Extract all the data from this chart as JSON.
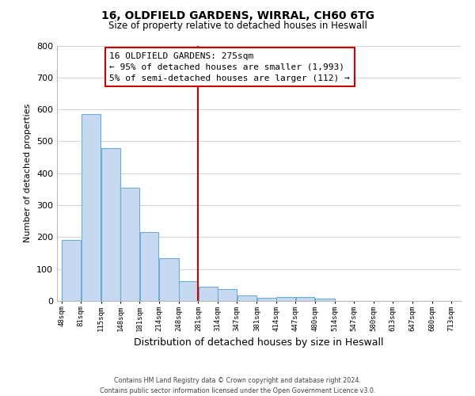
{
  "title": "16, OLDFIELD GARDENS, WIRRAL, CH60 6TG",
  "subtitle": "Size of property relative to detached houses in Heswall",
  "xlabel": "Distribution of detached houses by size in Heswall",
  "ylabel": "Number of detached properties",
  "bar_left_edges": [
    48,
    81,
    115,
    148,
    181,
    214,
    248,
    281,
    314,
    347,
    381,
    414,
    447,
    480,
    514,
    547,
    580,
    613,
    647,
    680
  ],
  "bar_widths": [
    33,
    34,
    33,
    33,
    33,
    34,
    33,
    33,
    33,
    34,
    33,
    33,
    33,
    34,
    33,
    33,
    33,
    34,
    33,
    33
  ],
  "bar_heights": [
    192,
    585,
    480,
    354,
    217,
    134,
    62,
    44,
    37,
    18,
    11,
    13,
    12,
    7,
    0,
    0,
    0,
    0,
    0,
    0
  ],
  "bar_color": "#c6d9f0",
  "bar_edgecolor": "#6baed6",
  "tick_labels": [
    "48sqm",
    "81sqm",
    "115sqm",
    "148sqm",
    "181sqm",
    "214sqm",
    "248sqm",
    "281sqm",
    "314sqm",
    "347sqm",
    "381sqm",
    "414sqm",
    "447sqm",
    "480sqm",
    "514sqm",
    "547sqm",
    "580sqm",
    "613sqm",
    "647sqm",
    "680sqm",
    "713sqm"
  ],
  "ylim": [
    0,
    800
  ],
  "yticks": [
    0,
    100,
    200,
    300,
    400,
    500,
    600,
    700,
    800
  ],
  "vline_x": 281,
  "vline_color": "#cc0000",
  "annotation_title": "16 OLDFIELD GARDENS: 275sqm",
  "annotation_line1": "← 95% of detached houses are smaller (1,993)",
  "annotation_line2": "5% of semi-detached houses are larger (112) →",
  "footer1": "Contains HM Land Registry data © Crown copyright and database right 2024.",
  "footer2": "Contains public sector information licensed under the Open Government Licence v3.0.",
  "bg_color": "#ffffff",
  "grid_color": "#d0d8e4"
}
